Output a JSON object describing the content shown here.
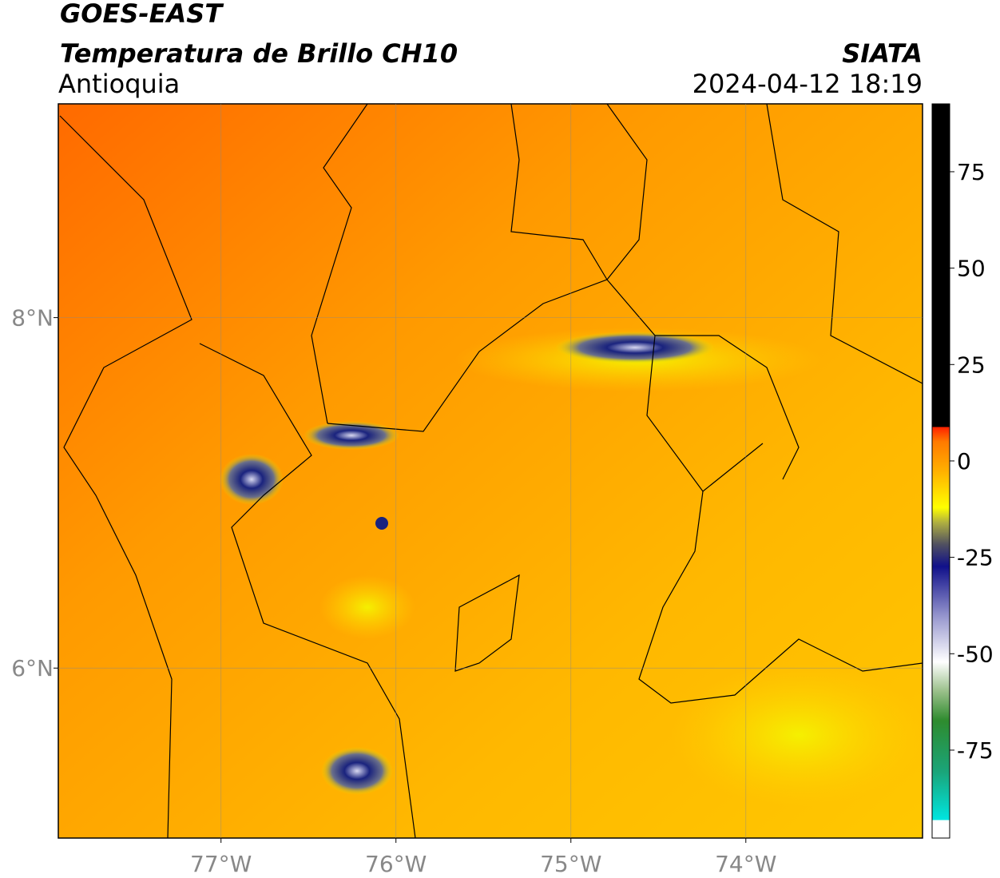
{
  "map": {
    "title": "GOES-EAST",
    "subtitle": "Temperatura de Brillo CH10",
    "region": "Antioquia",
    "source": "SIATA",
    "timestamp": "2024-04-12 18:19",
    "xlim": [
      -77.93,
      -72.99
    ],
    "ylim": [
      5.03,
      9.22
    ],
    "xticks": [
      {
        "value": -77,
        "label": "77°W"
      },
      {
        "value": -76,
        "label": "76°W"
      },
      {
        "value": -75,
        "label": "75°W"
      },
      {
        "value": -74,
        "label": "74°W"
      }
    ],
    "yticks": [
      {
        "value": 8,
        "label": "8°N"
      },
      {
        "value": 6,
        "label": "6°N"
      }
    ],
    "colorbar": {
      "lim": [
        -97.8,
        92.6
      ],
      "ticks": [
        75,
        50,
        25,
        0,
        -25,
        -50,
        -75
      ]
    }
  }
}
